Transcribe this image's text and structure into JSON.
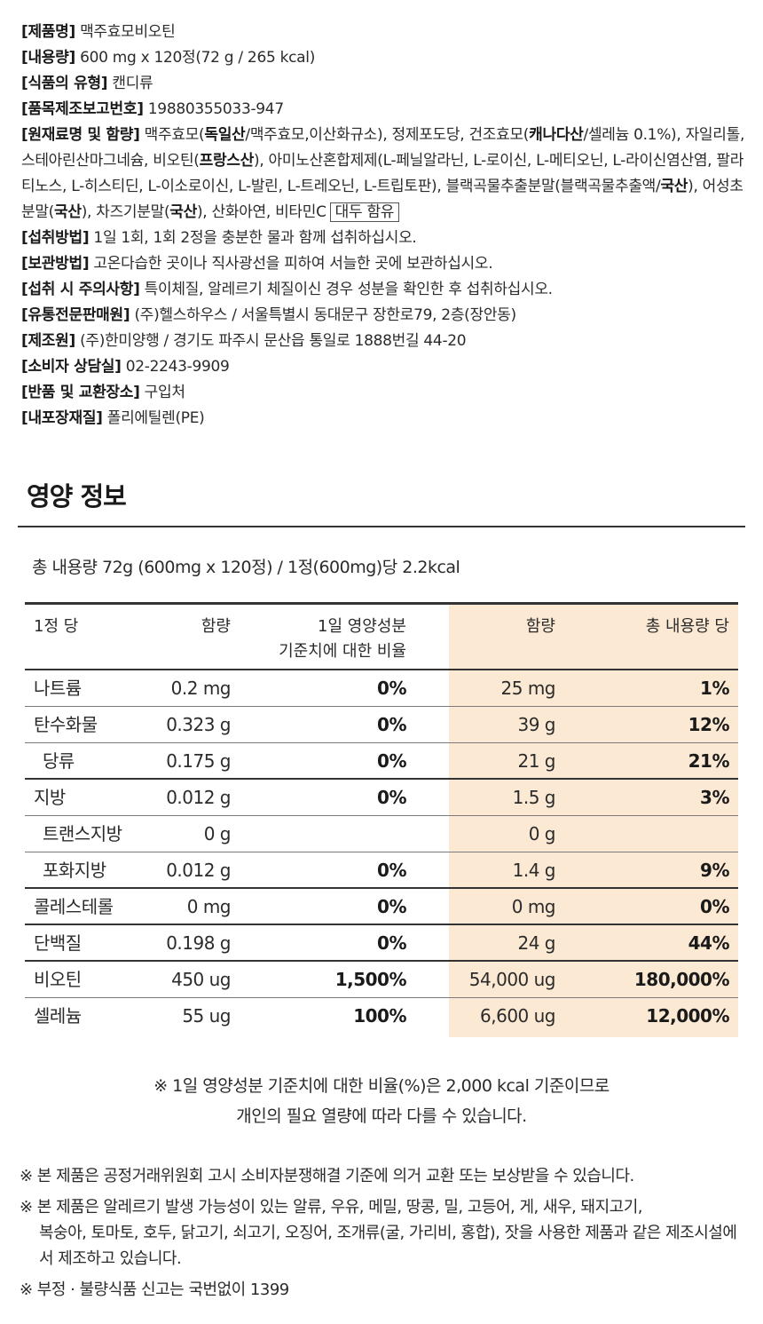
{
  "product_info": {
    "product_name": {
      "key": "[제품명]",
      "value": "맥주효모비오틴"
    },
    "content": {
      "key": "[내용량]",
      "value": "600 mg x 120정(72 g / 265 kcal)"
    },
    "food_type": {
      "key": "[식품의 유형]",
      "value": "캔디류"
    },
    "report_no": {
      "key": "[품목제조보고번호]",
      "value": "19880355033-947"
    },
    "ingredients": {
      "key": "[원재료명 및 함량]",
      "p1": "맥주효모(",
      "b1": "독일산",
      "p2": "/맥주효모,이산화규소), 정제포도당, 건조효모(",
      "b2": "캐나다산",
      "p3": "/셀레늄 0.1%), 자일리톨, 스테아린산마그네슘, 비오틴(",
      "b3": "프랑스산",
      "p4": "), 아미노산혼합제제(L-페닐알라닌, L-로이신, L-메티오닌, L-라이신염산염, 팔라티노스, L-히스티딘, L-이소로이신, L-발린, L-트레오닌, L-트립토판), 블랙곡물추출분말(블랙곡물추출액/",
      "b4": "국산",
      "p5": "), 어성초분말(",
      "b5": "국산",
      "p6": "), 차즈기분말(",
      "b6": "국산",
      "p7": "), 산화아연, 비타민C",
      "allergen_box": "대두 함유"
    },
    "intake": {
      "key": "[섭취방법]",
      "value": "1일 1회, 1회 2정을 충분한 물과 함께 섭취하십시오."
    },
    "storage": {
      "key": "[보관방법]",
      "value": "고온다습한 곳이나 직사광선을 피하여 서늘한 곳에 보관하십시오."
    },
    "caution": {
      "key": "[섭취 시 주의사항]",
      "value": "특이체질, 알레르기 체질이신 경우 성분을 확인한 후 섭취하십시오."
    },
    "distributor": {
      "key": "[유통전문판매원]",
      "value": "(주)헬스하우스 / 서울특별시 동대문구 장한로79, 2층(장안동)"
    },
    "manufacturer": {
      "key": "[제조원]",
      "value": "(주)한미양행 / 경기도 파주시 문산읍 통일로 1888번길 44-20"
    },
    "consumer_center": {
      "key": "[소비자 상담실]",
      "value": "02-2243-9909"
    },
    "return_place": {
      "key": "[반품 및 교환장소]",
      "value": "구입처"
    },
    "packaging": {
      "key": "[내포장재질]",
      "value": "폴리에틸렌(PE)"
    }
  },
  "nutrition": {
    "title": "영양 정보",
    "total_line": "총 내용량 72g (600mg x 120정) / 1정(600mg)당 2.2kcal",
    "headers": {
      "per_unit": "1정 당",
      "amount": "함량",
      "dv_line1": "1일 영양성분",
      "dv_line2": "기준치에 대한 비율",
      "total_amount": "함량",
      "total_dv": "총 내용량 당"
    },
    "rows": [
      {
        "name": "나트륨",
        "amount": "0.2 mg",
        "pct": "0%",
        "total_amount": "25 mg",
        "total_pct": "1%"
      },
      {
        "name": "탄수화물",
        "amount": "0.323 g",
        "pct": "0%",
        "total_amount": "39 g",
        "total_pct": "12%"
      },
      {
        "name": "당류",
        "amount": "0.175 g",
        "pct": "0%",
        "total_amount": "21 g",
        "total_pct": "21%"
      },
      {
        "name": "지방",
        "amount": "0.012 g",
        "pct": "0%",
        "total_amount": "1.5 g",
        "total_pct": "3%"
      },
      {
        "name": "트랜스지방",
        "amount": "0 g",
        "pct": "",
        "total_amount": "0 g",
        "total_pct": ""
      },
      {
        "name": "포화지방",
        "amount": "0.012 g",
        "pct": "0%",
        "total_amount": "1.4 g",
        "total_pct": "9%"
      },
      {
        "name": "콜레스테롤",
        "amount": "0 mg",
        "pct": "0%",
        "total_amount": "0 mg",
        "total_pct": "0%"
      },
      {
        "name": "단백질",
        "amount": "0.198 g",
        "pct": "0%",
        "total_amount": "24 g",
        "total_pct": "44%"
      },
      {
        "name": "비오틴",
        "amount": "450 ug",
        "pct": "1,500%",
        "total_amount": "54,000 ug",
        "total_pct": "180,000%"
      },
      {
        "name": "셀레늄",
        "amount": "55 ug",
        "pct": "100%",
        "total_amount": "6,600 ug",
        "total_pct": "12,000%"
      }
    ],
    "note_line1": "※ 1일 영양성분 기준치에 대한 비율(%)은 2,000 kcal 기준이므로",
    "note_line2": "개인의 필요 열량에 따라 다를 수 있습니다."
  },
  "disclaimers": [
    {
      "line1": "※ 본 제품은 공정거래위원회 고시 소비자분쟁해결 기준에 의거 교환 또는 보상받을 수 있습니다.",
      "line2": ""
    },
    {
      "line1": "※ 본 제품은 알레르기 발생 가능성이 있는 알류, 우유, 메밀, 땅콩, 밀, 고등어, 게, 새우, 돼지고기,",
      "line2": "복숭아, 토마토, 호두, 닭고기, 쇠고기, 오징어, 조개류(굴, 가리비, 홍합), 잣을 사용한 제품과 같은 제조시설에서 제조하고 있습니다."
    },
    {
      "line1": "※ 부정 · 불량식품 신고는 국번없이 1399",
      "line2": ""
    }
  ],
  "colors": {
    "table_shade": "#fbe9d3",
    "text": "#2b2b2b",
    "rule": "#333333"
  }
}
